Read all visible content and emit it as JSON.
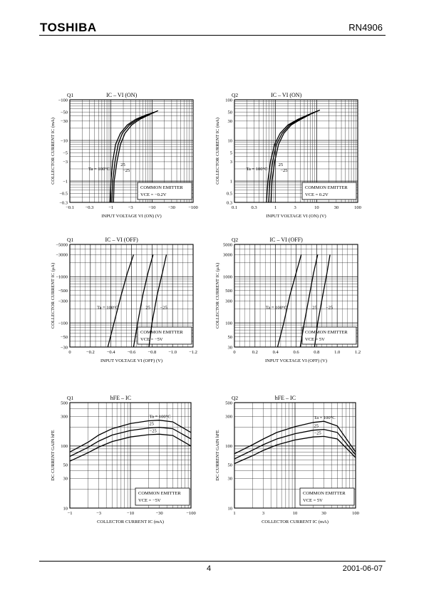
{
  "header": {
    "logo": "TOSHIBA",
    "part_number": "RN4906"
  },
  "footer": {
    "page": "4",
    "date": "2001-06-07"
  },
  "chart_data": [
    {
      "type": "line",
      "id": "q1-ic-vi-on",
      "label": "Q1",
      "title": "IC – VI (ON)",
      "xlabel": "INPUT VOLTAGE VI (ON) (V)",
      "ylabel": "COLLECTOR CURRENT IC (mA)",
      "xscale": "log",
      "yscale": "log",
      "x_reversed_sign": true,
      "xlim": [
        0.1,
        100
      ],
      "ylim": [
        0.3,
        100
      ],
      "xticks": [
        0.1,
        0.3,
        1,
        3,
        10,
        30,
        100
      ],
      "xtick_labels": [
        "−0.1",
        "−0.3",
        "−1",
        "−3",
        "−10",
        "−30",
        "−100"
      ],
      "yticks": [
        0.3,
        0.5,
        1,
        3,
        5,
        10,
        30,
        50,
        100
      ],
      "ytick_labels": [
        "−0.3",
        "−0.5",
        "−1",
        "−3",
        "−5",
        "−10",
        "−30",
        "−50",
        "−100"
      ],
      "grid": true,
      "note": {
        "lines": [
          "COMMON EMITTER",
          "VCE = −0.2V"
        ]
      },
      "series_labels": [
        "Ta = 100°C",
        "25",
        "−25"
      ],
      "series": [
        {
          "name": "Ta = 100°C",
          "x": [
            0.95,
            1.0,
            1.1,
            1.3,
            1.7,
            2.5,
            4,
            7,
            12
          ],
          "y": [
            0.3,
            1,
            3,
            8,
            15,
            24,
            33,
            42,
            50
          ]
        },
        {
          "name": "25",
          "x": [
            1.05,
            1.1,
            1.25,
            1.5,
            1.9,
            2.8,
            4.5,
            8,
            13
          ],
          "y": [
            0.3,
            1,
            3,
            8,
            15,
            24,
            33,
            43,
            52
          ]
        },
        {
          "name": "−25",
          "x": [
            1.15,
            1.2,
            1.4,
            1.7,
            2.2,
            3.2,
            5,
            9,
            14
          ],
          "y": [
            0.3,
            1,
            3,
            8,
            15,
            24,
            33,
            44,
            54
          ]
        }
      ]
    },
    {
      "type": "line",
      "id": "q2-ic-vi-on",
      "label": "Q2",
      "title": "IC – VI (ON)",
      "xlabel": "INPUT VOLTAGE VI (ON) (V)",
      "ylabel": "COLLECTOR CURRENT IC (mA)",
      "xscale": "log",
      "yscale": "log",
      "xlim": [
        0.1,
        100
      ],
      "ylim": [
        0.3,
        100
      ],
      "xticks": [
        0.1,
        0.3,
        1,
        3,
        10,
        30,
        100
      ],
      "xtick_labels": [
        "0.1",
        "0.3",
        "1",
        "3",
        "10",
        "30",
        "100"
      ],
      "yticks": [
        0.3,
        0.5,
        1,
        3,
        5,
        10,
        30,
        50,
        100
      ],
      "ytick_labels": [
        "0.3",
        "0.5",
        "1",
        "3",
        "5",
        "10",
        "30",
        "50",
        "100"
      ],
      "grid": true,
      "note": {
        "lines": [
          "COMMON EMITTER",
          "VCE = 0.2V"
        ]
      },
      "series_labels": [
        "Ta = 100°C",
        "25",
        "−25"
      ],
      "series": [
        {
          "name": "Ta = 100°C",
          "x": [
            0.6,
            0.65,
            0.75,
            0.95,
            1.3,
            2,
            3.5,
            6,
            10
          ],
          "y": [
            0.3,
            1,
            3,
            8,
            15,
            24,
            33,
            42,
            52
          ]
        },
        {
          "name": "25",
          "x": [
            0.68,
            0.73,
            0.85,
            1.05,
            1.45,
            2.2,
            3.8,
            6.5,
            11
          ],
          "y": [
            0.3,
            1,
            3,
            8,
            15,
            24,
            33,
            43,
            54
          ]
        },
        {
          "name": "−25",
          "x": [
            0.77,
            0.82,
            0.95,
            1.18,
            1.6,
            2.4,
            4.1,
            7,
            12
          ],
          "y": [
            0.3,
            1,
            3,
            8,
            15,
            24,
            33,
            44,
            56
          ]
        }
      ]
    },
    {
      "type": "line",
      "id": "q1-ic-vi-off",
      "label": "Q1",
      "title": "IC – VI (OFF)",
      "xlabel": "INPUT VOLTAGE VI (OFF) (V)",
      "ylabel": "COLLECTOR CURRENT IC (μA)",
      "xscale": "linear",
      "yscale": "log",
      "xlim": [
        0,
        1.2
      ],
      "ylim": [
        30,
        5000
      ],
      "xticks": [
        0,
        0.2,
        0.4,
        0.6,
        0.8,
        1.0,
        1.2
      ],
      "xtick_labels": [
        "0",
        "−0.2",
        "−0.4",
        "−0.6",
        "−0.8",
        "−1.0",
        "−1.2"
      ],
      "yticks": [
        30,
        50,
        100,
        300,
        500,
        1000,
        3000,
        5000
      ],
      "ytick_labels": [
        "−30",
        "−50",
        "−100",
        "−300",
        "−500",
        "−1000",
        "−3000",
        "−5000"
      ],
      "grid": true,
      "note": {
        "lines": [
          "COMMON EMITTER",
          "VCE = −5V"
        ]
      },
      "series_labels": [
        "Ta = 100°C",
        "25",
        "−25"
      ],
      "series": [
        {
          "name": "Ta = 100°C",
          "x": [
            0.37,
            0.43,
            0.5,
            0.56,
            0.62
          ],
          "y": [
            30,
            100,
            400,
            1200,
            3000
          ]
        },
        {
          "name": "25",
          "x": [
            0.62,
            0.66,
            0.71,
            0.76,
            0.81
          ],
          "y": [
            30,
            100,
            400,
            1200,
            3000
          ]
        },
        {
          "name": "−25",
          "x": [
            0.77,
            0.8,
            0.85,
            0.9,
            0.94
          ],
          "y": [
            30,
            100,
            400,
            1200,
            3000
          ]
        }
      ]
    },
    {
      "type": "line",
      "id": "q2-ic-vi-off",
      "label": "Q2",
      "title": "IC – VI (OFF)",
      "xlabel": "INPUT VOLTAGE VI (OFF) (V)",
      "ylabel": "COLLECTOR CURRENT IC (μA)",
      "xscale": "linear",
      "yscale": "log",
      "xlim": [
        0,
        1.2
      ],
      "ylim": [
        30,
        5000
      ],
      "xticks": [
        0,
        0.2,
        0.4,
        0.6,
        0.8,
        1.0,
        1.2
      ],
      "xtick_labels": [
        "0",
        "0.2",
        "0.4",
        "0.6",
        "0.8",
        "1.0",
        "1.2"
      ],
      "yticks": [
        30,
        50,
        100,
        300,
        500,
        1000,
        3000,
        5000
      ],
      "ytick_labels": [
        "30",
        "50",
        "100",
        "300",
        "500",
        "1000",
        "3000",
        "5000"
      ],
      "grid": true,
      "note": {
        "lines": [
          "COMMON EMITTER",
          "VCE = 5V"
        ]
      },
      "series_labels": [
        "Ta = 100°C",
        "25",
        "−25"
      ],
      "series": [
        {
          "name": "Ta = 100°C",
          "x": [
            0.42,
            0.48,
            0.54,
            0.6,
            0.65
          ],
          "y": [
            30,
            100,
            400,
            1200,
            3000
          ]
        },
        {
          "name": "25",
          "x": [
            0.64,
            0.68,
            0.73,
            0.77,
            0.81
          ],
          "y": [
            30,
            100,
            400,
            1200,
            3000
          ]
        },
        {
          "name": "−25",
          "x": [
            0.78,
            0.81,
            0.86,
            0.9,
            0.93
          ],
          "y": [
            30,
            100,
            400,
            1200,
            3000
          ]
        }
      ]
    },
    {
      "type": "line",
      "id": "q1-hfe-ic",
      "label": "Q1",
      "title": "hFE – IC",
      "xlabel": "COLLECTOR CURRENT IC (mA)",
      "ylabel": "DC CURRENT GAIN hFE",
      "xscale": "log",
      "yscale": "log",
      "xlim": [
        1,
        100
      ],
      "ylim": [
        10,
        500
      ],
      "xticks": [
        1,
        3,
        10,
        30,
        100
      ],
      "xtick_labels": [
        "−1",
        "−3",
        "−10",
        "−30",
        "−100"
      ],
      "yticks": [
        10,
        30,
        50,
        100,
        300,
        500
      ],
      "ytick_labels": [
        "10",
        "30",
        "50",
        "100",
        "300",
        "500"
      ],
      "grid": true,
      "note": {
        "lines": [
          "COMMON EMITTER",
          "VCE = −5V"
        ]
      },
      "series_labels": [
        "Ta = 100°C",
        "25",
        "−25"
      ],
      "series": [
        {
          "name": "Ta = 100°C",
          "x": [
            1,
            2,
            3,
            5,
            10,
            20,
            30,
            50,
            100
          ],
          "y": [
            80,
            115,
            150,
            190,
            230,
            255,
            260,
            245,
            165
          ]
        },
        {
          "name": "25",
          "x": [
            1,
            2,
            3,
            5,
            10,
            20,
            30,
            50,
            100
          ],
          "y": [
            68,
            95,
            120,
            150,
            178,
            195,
            200,
            190,
            130
          ]
        },
        {
          "name": "−25",
          "x": [
            1,
            2,
            3,
            5,
            10,
            20,
            30,
            50,
            100
          ],
          "y": [
            57,
            78,
            96,
            118,
            140,
            152,
            155,
            148,
            100
          ]
        }
      ]
    },
    {
      "type": "line",
      "id": "q2-hfe-ic",
      "label": "Q2",
      "title": "hFE – IC",
      "xlabel": "COLLECTOR CURRENT IC (mA)",
      "ylabel": "DC CURRENT GAIN hFE",
      "xscale": "log",
      "yscale": "log",
      "xlim": [
        1,
        100
      ],
      "ylim": [
        10,
        500
      ],
      "xticks": [
        1,
        3,
        10,
        30,
        100
      ],
      "xtick_labels": [
        "1",
        "3",
        "10",
        "30",
        "100"
      ],
      "yticks": [
        10,
        30,
        50,
        100,
        300,
        500
      ],
      "ytick_labels": [
        "10",
        "30",
        "50",
        "100",
        "300",
        "500"
      ],
      "grid": true,
      "note": {
        "lines": [
          "COMMON EMITTER",
          "VCE = 5V"
        ]
      },
      "series_labels": [
        "Ta = 100°C",
        "25",
        "−25"
      ],
      "series": [
        {
          "name": "Ta = 100°C",
          "x": [
            1,
            2,
            3,
            5,
            10,
            20,
            30,
            50,
            100
          ],
          "y": [
            75,
            105,
            130,
            165,
            205,
            240,
            250,
            210,
            80
          ]
        },
        {
          "name": "25",
          "x": [
            1,
            2,
            3,
            5,
            10,
            20,
            30,
            50,
            100
          ],
          "y": [
            62,
            86,
            105,
            130,
            158,
            180,
            185,
            165,
            72
          ]
        },
        {
          "name": "−25",
          "x": [
            1,
            2,
            3,
            5,
            10,
            20,
            30,
            50,
            100
          ],
          "y": [
            52,
            70,
            85,
            104,
            125,
            140,
            143,
            130,
            65
          ]
        }
      ]
    }
  ]
}
